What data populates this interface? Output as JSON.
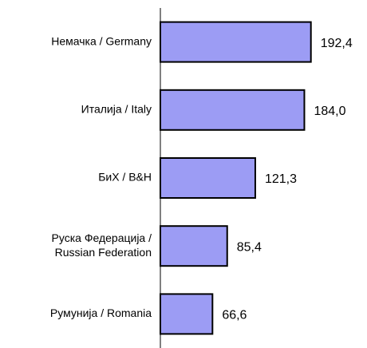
{
  "chart_data": {
    "type": "bar",
    "orientation": "horizontal",
    "categories": [
      "Немачка / Germany",
      "Италија / Italy",
      "БиХ / B&H",
      [
        "Руска Федерација /",
        "Russian Federation"
      ],
      "Румунија / Romania"
    ],
    "values": [
      192.4,
      184.0,
      121.3,
      85.4,
      66.6
    ],
    "value_labels": [
      "192,4",
      "184,0",
      "121,3",
      "85,4",
      "66,6"
    ],
    "color": "#9c9cf4",
    "xlim": [
      0,
      260
    ]
  }
}
